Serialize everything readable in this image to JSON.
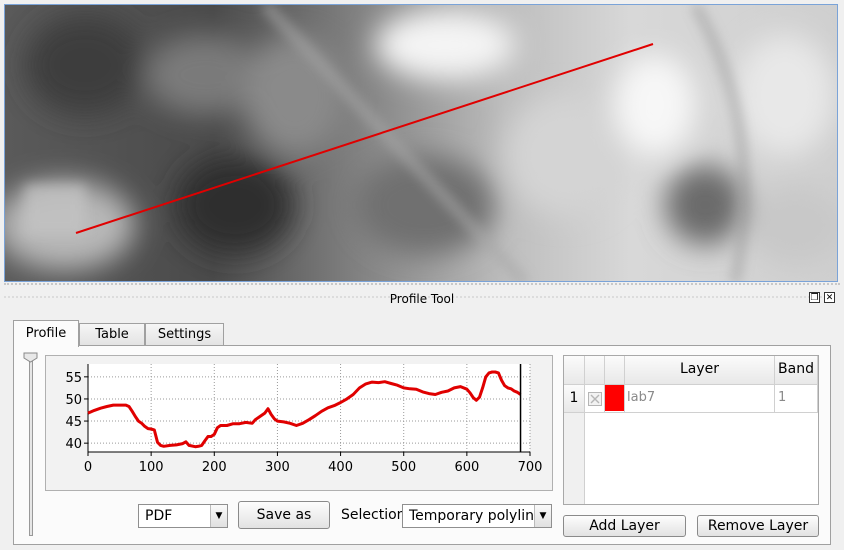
{
  "dock": {
    "title": "Profile Tool"
  },
  "tabs": [
    {
      "label": "Profile"
    },
    {
      "label": "Table"
    },
    {
      "label": "Settings"
    }
  ],
  "plot": {
    "y_ticks": [
      "55",
      "50",
      "45",
      "40"
    ],
    "x_ticks": [
      "0",
      "100",
      "200",
      "300",
      "400",
      "500",
      "600",
      "700"
    ],
    "line_color": "#e00000"
  },
  "chart_data": {
    "type": "line",
    "title": "",
    "xlabel": "",
    "ylabel": "",
    "xlim": [
      0,
      700
    ],
    "ylim": [
      38,
      57
    ],
    "grid": true,
    "series": [
      {
        "values": [
          [
            0,
            46.8
          ],
          [
            10,
            47.4
          ],
          [
            20,
            47.9
          ],
          [
            30,
            48.3
          ],
          [
            40,
            48.6
          ],
          [
            50,
            48.6
          ],
          [
            60,
            48.6
          ],
          [
            65,
            48.3
          ],
          [
            70,
            47.2
          ],
          [
            75,
            46.0
          ],
          [
            80,
            45.0
          ],
          [
            85,
            44.5
          ],
          [
            90,
            43.8
          ],
          [
            95,
            43.3
          ],
          [
            100,
            43.2
          ],
          [
            105,
            43.0
          ],
          [
            110,
            40.2
          ],
          [
            115,
            39.5
          ],
          [
            120,
            39.3
          ],
          [
            130,
            39.5
          ],
          [
            140,
            39.6
          ],
          [
            150,
            39.9
          ],
          [
            155,
            40.3
          ],
          [
            160,
            39.5
          ],
          [
            170,
            39.2
          ],
          [
            175,
            39.3
          ],
          [
            180,
            39.5
          ],
          [
            185,
            40.5
          ],
          [
            190,
            41.5
          ],
          [
            195,
            41.5
          ],
          [
            200,
            42.0
          ],
          [
            205,
            43.5
          ],
          [
            210,
            44.0
          ],
          [
            220,
            44.0
          ],
          [
            230,
            44.4
          ],
          [
            240,
            44.4
          ],
          [
            250,
            44.7
          ],
          [
            260,
            44.5
          ],
          [
            265,
            45.3
          ],
          [
            270,
            45.8
          ],
          [
            280,
            46.8
          ],
          [
            285,
            47.8
          ],
          [
            290,
            46.5
          ],
          [
            295,
            45.5
          ],
          [
            300,
            45.0
          ],
          [
            310,
            44.8
          ],
          [
            320,
            44.5
          ],
          [
            330,
            44.0
          ],
          [
            340,
            44.5
          ],
          [
            350,
            45.3
          ],
          [
            360,
            46.2
          ],
          [
            370,
            47.2
          ],
          [
            380,
            48.0
          ],
          [
            390,
            48.5
          ],
          [
            400,
            49.2
          ],
          [
            410,
            50.0
          ],
          [
            420,
            51.0
          ],
          [
            430,
            52.5
          ],
          [
            440,
            53.4
          ],
          [
            450,
            53.8
          ],
          [
            460,
            53.7
          ],
          [
            470,
            53.9
          ],
          [
            480,
            53.5
          ],
          [
            490,
            53.1
          ],
          [
            500,
            52.5
          ],
          [
            510,
            52.3
          ],
          [
            520,
            52.2
          ],
          [
            530,
            51.6
          ],
          [
            540,
            51.2
          ],
          [
            550,
            51.0
          ],
          [
            560,
            51.5
          ],
          [
            570,
            51.8
          ],
          [
            580,
            52.5
          ],
          [
            590,
            52.8
          ],
          [
            600,
            52.2
          ],
          [
            605,
            51.4
          ],
          [
            610,
            50.3
          ],
          [
            615,
            49.7
          ],
          [
            620,
            50.4
          ],
          [
            625,
            52.5
          ],
          [
            630,
            55.0
          ],
          [
            635,
            55.9
          ],
          [
            640,
            56.1
          ],
          [
            645,
            56.1
          ],
          [
            650,
            55.9
          ],
          [
            655,
            54.2
          ],
          [
            660,
            53.0
          ],
          [
            665,
            52.5
          ],
          [
            670,
            52.3
          ],
          [
            675,
            51.8
          ],
          [
            680,
            51.5
          ],
          [
            685,
            51.0
          ]
        ]
      }
    ]
  },
  "controls": {
    "format_combo": {
      "value": "PDF"
    },
    "save_as_label": "Save as",
    "selection_label": "Selection",
    "selection_combo": {
      "value": "Temporary polyline"
    }
  },
  "layer_table": {
    "columns": [
      "",
      "",
      "",
      "Layer",
      "Band"
    ],
    "rows": [
      {
        "index": "1",
        "color": "#ff0000",
        "layer": "lab7",
        "band": "1"
      }
    ]
  },
  "buttons": {
    "add_layer": "Add Layer",
    "remove_layer": "Remove Layer"
  },
  "map": {
    "profile_line_color": "#e00000"
  }
}
